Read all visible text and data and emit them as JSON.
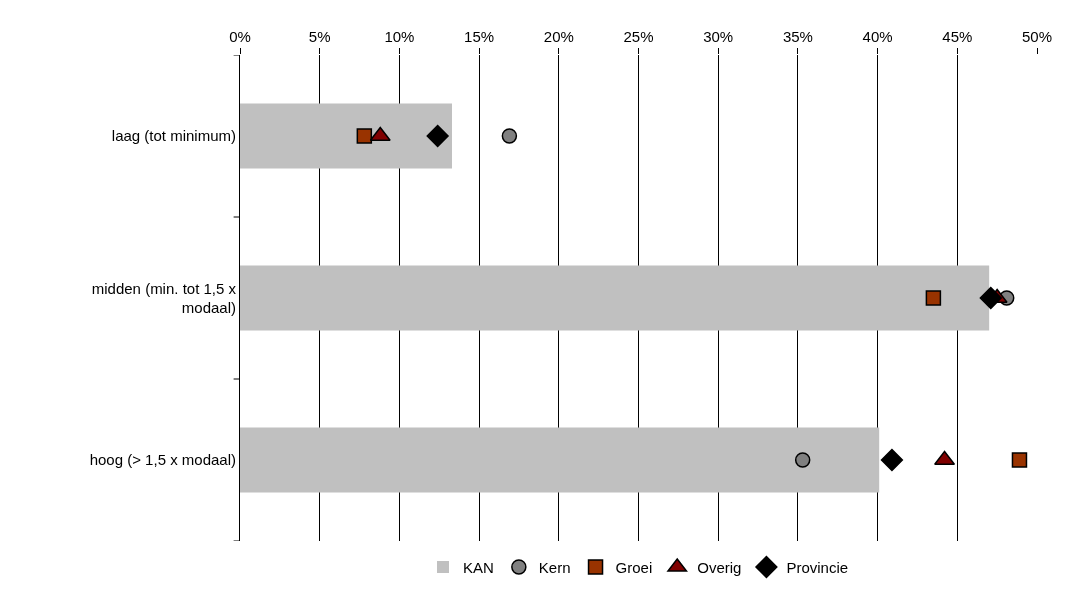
{
  "chart_data": {
    "type": "bar",
    "orientation": "horizontal",
    "categories": [
      "laag (tot minimum)",
      "midden (min. tot 1,5 x modaal)",
      "hoog (> 1,5 x modaal)"
    ],
    "series": [
      {
        "name": "KAN",
        "color": "#c0c0c0",
        "values": [
          13.3,
          47.0,
          40.1
        ]
      },
      {
        "name": "Kern",
        "type": "scatter",
        "marker": "circle",
        "color": "#808080",
        "values": [
          16.9,
          48.1,
          35.3
        ]
      },
      {
        "name": "Groei",
        "type": "scatter",
        "marker": "square",
        "color": "#993300",
        "values": [
          7.8,
          43.5,
          48.9
        ]
      },
      {
        "name": "Overig",
        "type": "scatter",
        "marker": "triangle",
        "color": "#800000",
        "values": [
          8.8,
          47.5,
          44.2
        ]
      },
      {
        "name": "Provincie",
        "type": "scatter",
        "marker": "diamond",
        "color": "#000000",
        "values": [
          12.4,
          47.1,
          40.9
        ]
      }
    ],
    "xlim": [
      0,
      50
    ],
    "xticks": [
      {
        "value": 0,
        "label": "0%"
      },
      {
        "value": 5,
        "label": "5%"
      },
      {
        "value": 10,
        "label": "10%"
      },
      {
        "value": 15,
        "label": "15%"
      },
      {
        "value": 20,
        "label": "20%"
      },
      {
        "value": 25,
        "label": "25%"
      },
      {
        "value": 30,
        "label": "30%"
      },
      {
        "value": 35,
        "label": "35%"
      },
      {
        "value": 40,
        "label": "40%"
      },
      {
        "value": 45,
        "label": "45%"
      },
      {
        "value": 50,
        "label": "50%"
      }
    ],
    "grid": "x",
    "legend": "bottom"
  }
}
